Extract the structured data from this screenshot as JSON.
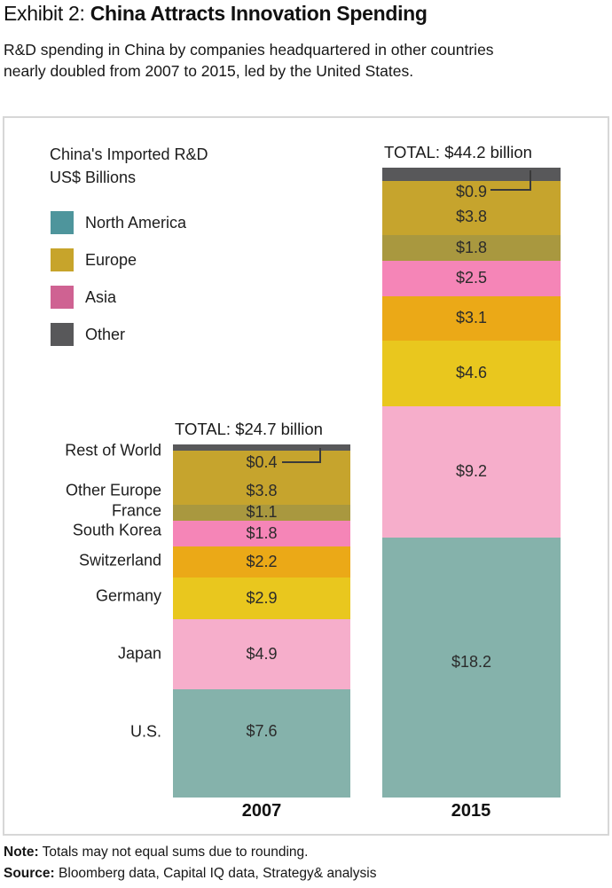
{
  "header": {
    "exhibit_label": "Exhibit 2:",
    "title": "China Attracts Innovation Spending",
    "subtitle_lines": [
      "R&D spending in China by companies headquartered in other countries",
      "nearly doubled from 2007 to 2015, led by the United States."
    ]
  },
  "chart": {
    "heading_lines": [
      "China's Imported R&D",
      "US$ Billions"
    ],
    "legend": [
      {
        "label": "North America",
        "color": "#4e959c"
      },
      {
        "label": "Europe",
        "color": "#c7a42b"
      },
      {
        "label": "Asia",
        "color": "#cf6292"
      },
      {
        "label": "Other",
        "color": "#58585a"
      }
    ]
  },
  "chart_data": {
    "type": "bar",
    "stacked": true,
    "unit": "US$ billions",
    "title": "China's Imported R&D US$ Billions",
    "categories": [
      "2007",
      "2015"
    ],
    "totals": {
      "y2007": 24.7,
      "y2015": 44.2
    },
    "total_labels": {
      "y2007": "TOTAL: $24.7 billion",
      "y2015": "TOTAL: $44.2 billion"
    },
    "legend_position": "top-left",
    "series": [
      {
        "name": "U.S.",
        "region": "North America",
        "color": "#85b2ab",
        "values": {
          "y2007": 7.6,
          "y2015": 18.2
        },
        "labels": {
          "y2007": "$7.6",
          "y2015": "$18.2"
        }
      },
      {
        "name": "Japan",
        "region": "Asia",
        "color": "#f6aecb",
        "values": {
          "y2007": 4.9,
          "y2015": 9.2
        },
        "labels": {
          "y2007": "$4.9",
          "y2015": "$9.2"
        }
      },
      {
        "name": "Germany",
        "region": "Europe",
        "color": "#e9c71e",
        "values": {
          "y2007": 2.9,
          "y2015": 4.6
        },
        "labels": {
          "y2007": "$2.9",
          "y2015": "$4.6"
        }
      },
      {
        "name": "Switzerland",
        "region": "Europe",
        "color": "#eba917",
        "values": {
          "y2007": 2.2,
          "y2015": 3.1
        },
        "labels": {
          "y2007": "$2.2",
          "y2015": "$3.1"
        }
      },
      {
        "name": "South Korea",
        "region": "Asia",
        "color": "#f585b7",
        "values": {
          "y2007": 1.8,
          "y2015": 2.5
        },
        "labels": {
          "y2007": "$1.8",
          "y2015": "$2.5"
        }
      },
      {
        "name": "France",
        "region": "Europe",
        "color": "#a9983f",
        "values": {
          "y2007": 1.1,
          "y2015": 1.8
        },
        "labels": {
          "y2007": "$1.1",
          "y2015": "$1.8"
        }
      },
      {
        "name": "Other Europe",
        "region": "Europe",
        "color": "#c6a42d",
        "values": {
          "y2007": 3.8,
          "y2015": 3.8
        },
        "labels": {
          "y2007": "$3.8",
          "y2015": "$3.8"
        }
      },
      {
        "name": "Rest of World",
        "region": "Other",
        "color": "#58585a",
        "values": {
          "y2007": 0.4,
          "y2015": 0.9
        },
        "labels": {
          "y2007": "$0.4",
          "y2015": "$0.9"
        },
        "callout": true
      }
    ]
  },
  "footer": {
    "note_label": "Note:",
    "note": "Totals may not equal sums due to rounding.",
    "source_label": "Source:",
    "source": "Bloomberg data, Capital IQ data, Strategy& analysis"
  }
}
